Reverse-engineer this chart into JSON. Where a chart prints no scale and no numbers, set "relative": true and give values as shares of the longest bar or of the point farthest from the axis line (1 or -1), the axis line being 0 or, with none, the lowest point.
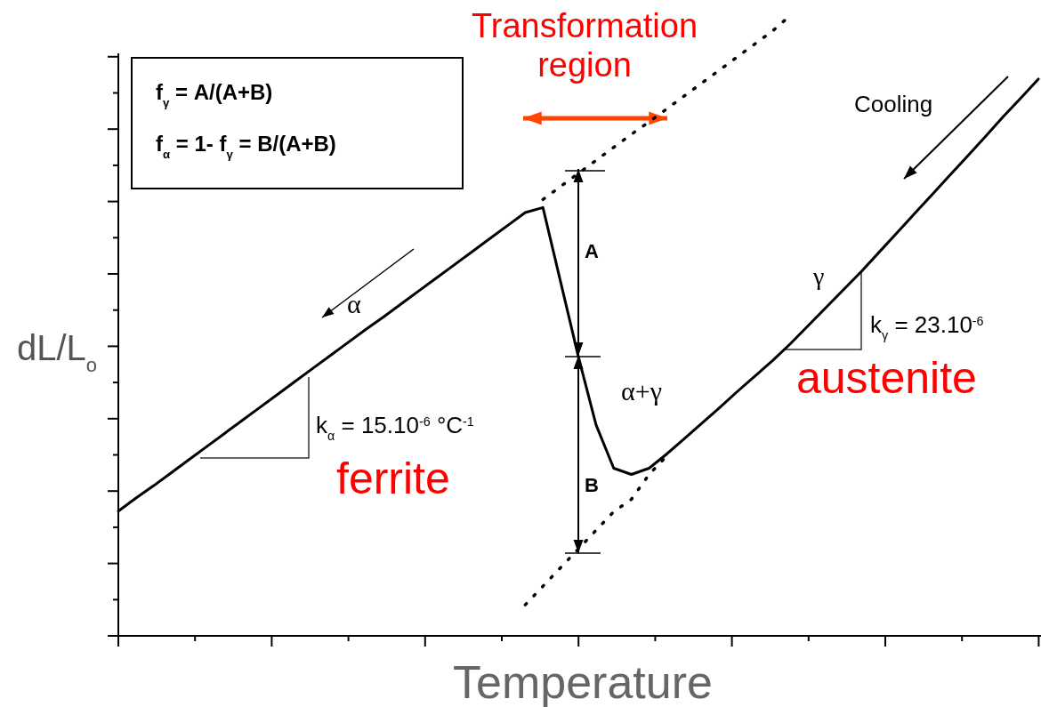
{
  "chart_data": {
    "type": "line",
    "xlabel": "Temperature",
    "ylabel": "dL/L$_{o}$",
    "relative": true,
    "categories": [
      null,
      null,
      null,
      null,
      null,
      null,
      null,
      null,
      null,
      null,
      null,
      null,
      null,
      null,
      null,
      null,
      null,
      null,
      null,
      null,
      null,
      null,
      null,
      null,
      null,
      null,
      null,
      null,
      null,
      null,
      null,
      null,
      null,
      null,
      null,
      null,
      null,
      null,
      null,
      null,
      null,
      null,
      null,
      null,
      null,
      null,
      null,
      null,
      null,
      null,
      null,
      null,
      null
    ],
    "series": [
      {
        "color": "#000000",
        "line_style": "solid",
        "values": [
          0.201,
          0.222,
          0.242,
          0.263,
          0.284,
          0.305,
          0.326,
          0.347,
          0.368,
          0.389,
          0.41,
          0.431,
          0.452,
          0.473,
          0.494,
          0.514,
          0.535,
          0.556,
          0.577,
          0.598,
          0.619,
          0.64,
          0.661,
          0.682,
          0.69,
          0.57,
          0.45,
          0.34,
          0.27,
          0.26,
          0.27,
          0.293,
          0.318,
          0.343,
          0.368,
          0.394,
          0.419,
          0.444,
          0.471,
          0.5,
          0.529,
          0.558,
          0.587,
          0.618,
          0.649,
          0.68,
          0.711,
          0.742,
          0.773,
          0.804,
          0.836,
          0.866,
          0.897
        ]
      },
      {
        "color": "#000000",
        "line_style": "dotted",
        "values": [
          null,
          null,
          null,
          null,
          null,
          null,
          null,
          null,
          null,
          null,
          null,
          null,
          null,
          null,
          null,
          null,
          null,
          null,
          null,
          null,
          null,
          null,
          null,
          null,
          0.703,
          0.724,
          0.745,
          0.766,
          0.787,
          0.808,
          0.828,
          0.849,
          0.87,
          0.891,
          0.912,
          0.933,
          0.954,
          0.975,
          1,
          null,
          null,
          null,
          null,
          null,
          null,
          null,
          null,
          null,
          null,
          null,
          null,
          null,
          null
        ]
      },
      {
        "color": "#000000",
        "line_style": "dotted",
        "values": [
          null,
          null,
          null,
          null,
          null,
          null,
          null,
          null,
          null,
          null,
          null,
          null,
          null,
          null,
          null,
          null,
          null,
          null,
          null,
          null,
          null,
          null,
          null,
          0.05,
          0.08,
          0.11,
          0.14,
          0.17,
          0.2,
          0.22,
          0.26,
          0.29,
          null,
          null,
          null,
          null,
          null,
          null,
          null,
          null,
          null,
          null,
          null,
          null,
          null,
          null,
          null,
          null,
          null,
          null,
          null,
          null,
          null
        ]
      }
    ],
    "annotations": [
      "Transformation region",
      "f$_{γ}$ = A/(A+B)",
      "f$_{α}$ = 1- f$_{γ}$ = B/(A+B)",
      "Cooling",
      "α",
      "α+γ",
      "γ",
      "A",
      "B",
      "k$_{α}$ = 15.10$^{-6}$ °C$^{-1}$",
      "k$_{γ}$ = 23.10$^{-6}$",
      "ferrite",
      "austenite"
    ]
  }
}
